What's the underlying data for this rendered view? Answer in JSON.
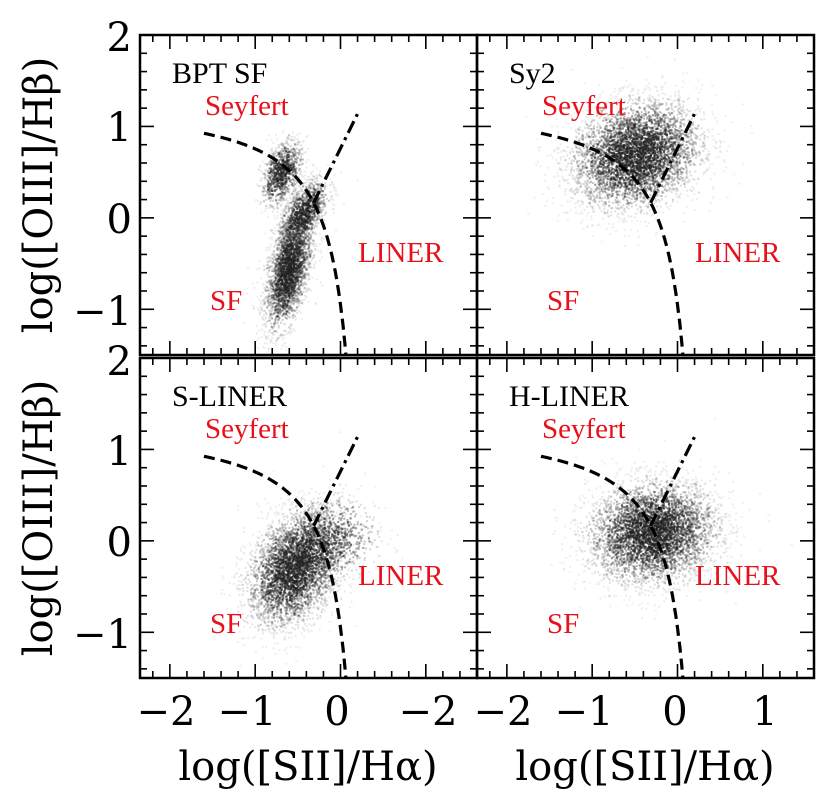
{
  "axes": {
    "xlabel": "log([SII]/Hα)",
    "ylabel": "log([OIII]/Hβ)",
    "xlim": [
      -2.35,
      1.6
    ],
    "ylim": [
      -1.5,
      2.0
    ],
    "xticks": [
      -2,
      -1,
      0,
      1
    ],
    "xtick_labels": [
      "−2",
      "−1",
      "0",
      "1"
    ],
    "yticks": [
      -1,
      0,
      1,
      2
    ],
    "ytick_labels": [
      "−1",
      "0",
      "1",
      "2"
    ]
  },
  "colors": {
    "region_label": "#e8101a",
    "lines": "#000000",
    "density": "#222222"
  },
  "region_labels": {
    "seyfert": "Seyfert",
    "liner": "LINER",
    "sf": "SF"
  },
  "chart_data": [
    {
      "type": "scatter",
      "title": "BPT SF",
      "density_clusters": [
        {
          "x": -0.62,
          "y": -0.58,
          "sx": 0.14,
          "sy": 0.32,
          "rho": 0.5,
          "weight": 0.55
        },
        {
          "x": -0.45,
          "y": 0.05,
          "sx": 0.15,
          "sy": 0.2,
          "rho": 0.6,
          "weight": 0.25
        },
        {
          "x": -0.7,
          "y": 0.5,
          "sx": 0.12,
          "sy": 0.18,
          "rho": 0.4,
          "weight": 0.2
        }
      ]
    },
    {
      "type": "scatter",
      "title": "Sy2",
      "density_clusters": [
        {
          "x": -0.5,
          "y": 0.7,
          "sx": 0.38,
          "sy": 0.3,
          "rho": 0.2,
          "weight": 1.0
        }
      ]
    },
    {
      "type": "scatter",
      "title": "S-LINER",
      "density_clusters": [
        {
          "x": -0.55,
          "y": -0.3,
          "sx": 0.28,
          "sy": 0.32,
          "rho": 0.35,
          "weight": 0.8
        },
        {
          "x": -0.2,
          "y": 0.0,
          "sx": 0.3,
          "sy": 0.25,
          "rho": 0.2,
          "weight": 0.2
        }
      ]
    },
    {
      "type": "scatter",
      "title": "H-LINER",
      "density_clusters": [
        {
          "x": -0.3,
          "y": 0.1,
          "sx": 0.38,
          "sy": 0.28,
          "rho": 0.1,
          "weight": 1.0
        }
      ]
    }
  ],
  "demarcation": {
    "kewley_sf_agn": "log([OIII]/Hβ) = 0.72 / (log([SII]/Hα) − 0.32) + 1.30",
    "kewley_seyfert_liner": "log([OIII]/Hβ) = 1.89 log([SII]/Hα) + 0.76"
  }
}
